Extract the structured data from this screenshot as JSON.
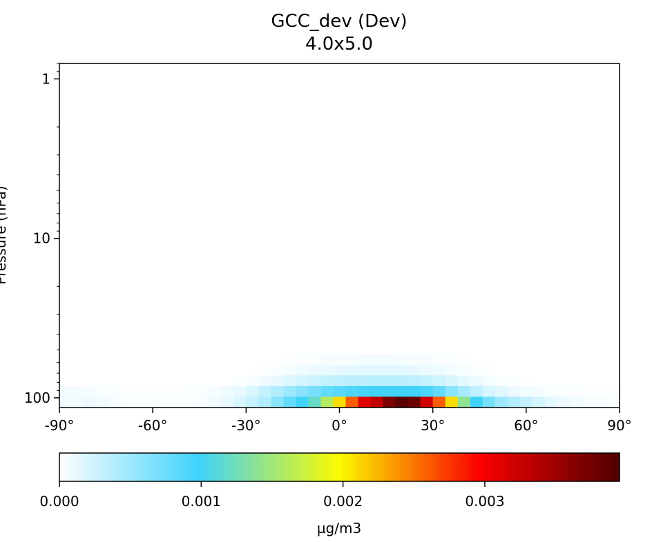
{
  "chart_data": {
    "type": "heatmap",
    "title": "GCC_dev (Dev)",
    "subtitle": "4.0x5.0",
    "ylabel": "Pressure (hPa)",
    "xlabel": "",
    "x_axis": {
      "range": [
        -90,
        90
      ],
      "ticks": [
        -90,
        -60,
        -30,
        0,
        30,
        60,
        90
      ],
      "tick_labels": [
        "-90°",
        "-60°",
        "-30°",
        "0°",
        "30°",
        "60°",
        "90°"
      ]
    },
    "y_axis": {
      "scale": "log",
      "inverted": true,
      "range": [
        115,
        0.8
      ],
      "ticks": [
        1,
        10,
        100
      ],
      "tick_labels": [
        "1",
        "10",
        "100"
      ]
    },
    "latitude_bins": [
      -90,
      -86,
      -82,
      -78,
      -74,
      -70,
      -66,
      -62,
      -58,
      -54,
      -50,
      -46,
      -42,
      -38,
      -34,
      -30,
      -26,
      -22,
      -18,
      -14,
      -10,
      -6,
      -2,
      2,
      6,
      10,
      14,
      18,
      22,
      26,
      30,
      34,
      38,
      42,
      46,
      50,
      54,
      58,
      62,
      66,
      70,
      74,
      78,
      82,
      86,
      90
    ],
    "pressure_levels": [
      {
        "p_bottom": 115,
        "p_top": 98,
        "values": [
          8e-05,
          9e-05,
          0.0001,
          8e-05,
          5e-05,
          3e-05,
          2e-05,
          2e-05,
          2e-05,
          2e-05,
          3e-05,
          5e-05,
          8e-05,
          0.00012,
          0.0002,
          0.0003,
          0.0004,
          0.0006,
          0.0008,
          0.001,
          0.0012,
          0.0016,
          0.0021,
          0.0026,
          0.0031,
          0.0033,
          0.0037,
          0.0039,
          0.0038,
          0.0032,
          0.0026,
          0.0021,
          0.0014,
          0.001,
          0.0007,
          0.0005,
          0.0004,
          0.0003,
          0.00022,
          0.00015,
          0.0001,
          7e-05,
          5e-05,
          4e-05,
          3e-05
        ]
      },
      {
        "p_bottom": 98,
        "p_top": 84,
        "values": [
          6e-05,
          6e-05,
          5e-05,
          3e-05,
          2e-05,
          1e-05,
          1e-05,
          1e-05,
          1e-05,
          1e-05,
          2e-05,
          3e-05,
          5e-05,
          8e-05,
          0.00012,
          0.0002,
          0.0003,
          0.0004,
          0.0005,
          0.0006,
          0.0007,
          0.0008,
          0.00085,
          0.0009,
          0.00095,
          0.001,
          0.001,
          0.001,
          0.00098,
          0.00092,
          0.0008,
          0.0006,
          0.00045,
          0.00032,
          0.0002,
          0.00015,
          0.0001,
          7e-05,
          5e-05,
          3e-05,
          2e-05,
          2e-05,
          1e-05,
          1e-05,
          1e-05
        ]
      },
      {
        "p_bottom": 84,
        "p_top": 72,
        "values": [
          0,
          0,
          0,
          0,
          0,
          0,
          0,
          0,
          0,
          0,
          0,
          0,
          0,
          0,
          2e-05,
          4e-05,
          8e-05,
          0.00012,
          0.00018,
          0.00022,
          0.00026,
          0.0003,
          0.00032,
          0.00034,
          0.00035,
          0.00036,
          0.00036,
          0.00035,
          0.00033,
          0.0003,
          0.00025,
          0.0002,
          0.00014,
          0.0001,
          6e-05,
          3e-05,
          2e-05,
          1e-05,
          0,
          0,
          0,
          0,
          0,
          0,
          0
        ]
      },
      {
        "p_bottom": 72,
        "p_top": 62,
        "values": [
          0,
          0,
          0,
          0,
          0,
          0,
          0,
          0,
          0,
          0,
          0,
          0,
          0,
          0,
          0,
          0,
          1e-05,
          3e-05,
          5e-05,
          8e-05,
          0.0001,
          0.00012,
          0.00013,
          0.00014,
          0.00015,
          0.00015,
          0.00015,
          0.00014,
          0.00013,
          0.00011,
          9e-05,
          6e-05,
          4e-05,
          2e-05,
          1e-05,
          0,
          0,
          0,
          0,
          0,
          0,
          0,
          0,
          0,
          0
        ]
      },
      {
        "p_bottom": 62,
        "p_top": 53,
        "values": [
          0,
          0,
          0,
          0,
          0,
          0,
          0,
          0,
          0,
          0,
          0,
          0,
          0,
          0,
          0,
          0,
          0,
          0,
          1e-05,
          2e-05,
          3e-05,
          4e-05,
          5e-05,
          5e-05,
          6e-05,
          6e-05,
          6e-05,
          5e-05,
          5e-05,
          4e-05,
          3e-05,
          2e-05,
          1e-05,
          0,
          0,
          0,
          0,
          0,
          0,
          0,
          0,
          0,
          0,
          0,
          0
        ]
      }
    ],
    "colorbar": {
      "label": "µg/m3",
      "range": [
        0,
        0.00395
      ],
      "ticks": [
        0,
        0.001,
        0.002,
        0.003
      ],
      "tick_labels": [
        "0.000",
        "0.001",
        "0.002",
        "0.003"
      ],
      "colormap_stops": [
        "#ffffff",
        "#3fd2fb",
        "#fbfb00",
        "#fb0000",
        "#500000"
      ]
    }
  }
}
